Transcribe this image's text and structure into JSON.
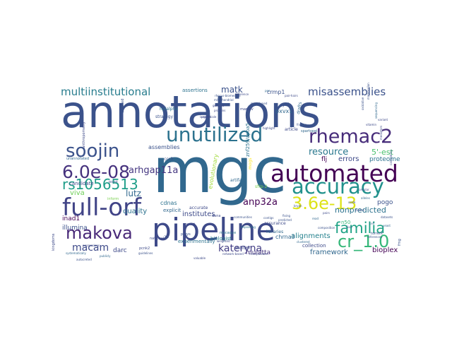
{
  "words": [
    {
      "text": "annotations",
      "color": "#3b528b"
    },
    {
      "text": "mgc",
      "color": "#31688e"
    },
    {
      "text": "pipeline",
      "color": "#3e4a89"
    },
    {
      "text": "automated",
      "color": "#440154"
    },
    {
      "text": "full-orf",
      "color": "#414487"
    },
    {
      "text": "accuracy",
      "color": "#21918c"
    },
    {
      "text": "unutilized",
      "color": "#2c728e"
    },
    {
      "text": "rhemac2",
      "color": "#472c7a"
    },
    {
      "text": "soojin",
      "color": "#3b528b"
    },
    {
      "text": "6.0e-08",
      "color": "#46327e"
    },
    {
      "text": "makova",
      "color": "#482878"
    },
    {
      "text": "3.6e-13",
      "color": "#dde318"
    },
    {
      "text": "cr_1.0",
      "color": "#35b779"
    },
    {
      "text": "familia",
      "color": "#20a386"
    },
    {
      "text": "rs1056513",
      "color": "#1f9e89"
    },
    {
      "text": "multiinstitutional",
      "color": "#287d8e"
    },
    {
      "text": "misassemblies",
      "color": "#3b528b"
    },
    {
      "text": "kateryna",
      "color": "#433e85"
    },
    {
      "text": "macam",
      "color": "#3e4a89"
    },
    {
      "text": "arhgap11a",
      "color": "#453781"
    },
    {
      "text": "anp32a",
      "color": "#440154"
    },
    {
      "text": "lutz",
      "color": "#31688e"
    },
    {
      "text": "matk",
      "color": "#3b528b"
    },
    {
      "text": "resource",
      "color": "#2a788e"
    },
    {
      "text": "5'-est",
      "color": "#4ac16d"
    },
    {
      "text": "nonpredicted",
      "color": "#2c728e"
    },
    {
      "text": "viva",
      "color": "#6ece58"
    },
    {
      "text": "quality",
      "color": "#2c728e"
    },
    {
      "text": "institutes",
      "color": "#3e4a89"
    },
    {
      "text": "pogo",
      "color": "#3b528b"
    },
    {
      "text": "alignments",
      "color": "#26828e"
    },
    {
      "text": "framework",
      "color": "#31688e"
    },
    {
      "text": "bioplex",
      "color": "#440154"
    },
    {
      "text": "errors",
      "color": "#3e4a89"
    },
    {
      "text": "proteome",
      "color": "#2c728e"
    },
    {
      "text": "flj",
      "color": "#440154"
    },
    {
      "text": "illumina",
      "color": "#3b528b"
    },
    {
      "text": "inad1",
      "color": "#440154"
    },
    {
      "text": "darc",
      "color": "#3e4a89"
    },
    {
      "text": "mulatta",
      "color": "#46337e"
    },
    {
      "text": "walter",
      "color": "#3e4a89"
    },
    {
      "text": "chrna3",
      "color": "#31688e"
    },
    {
      "text": "evolutionary",
      "color": "#a0da39"
    },
    {
      "text": "assemblies",
      "color": "#3b528b"
    },
    {
      "text": "cdnas",
      "color": "#2c728e"
    },
    {
      "text": "biologist",
      "color": "#26828e"
    },
    {
      "text": "collection",
      "color": "#3e4a89"
    },
    {
      "text": "crmp1",
      "color": "#3b528b"
    },
    {
      "text": "pxvx1",
      "color": "#31688e"
    },
    {
      "text": "assertions",
      "color": "#2c728e"
    },
    {
      "text": "candidate",
      "color": "#3e4a89"
    },
    {
      "text": "explicit",
      "color": "#31688e"
    },
    {
      "text": "experimentally",
      "color": "#2c728e"
    },
    {
      "text": "yi",
      "color": "#3b528b"
    },
    {
      "text": "n50",
      "color": "#35b779"
    },
    {
      "text": "article",
      "color": "#3e4a89"
    },
    {
      "text": "y2h",
      "color": "#3b528b"
    },
    {
      "text": "hpialpha",
      "color": "#2c728e"
    },
    {
      "text": "assurance",
      "color": "#3e4a89"
    },
    {
      "text": "drafts",
      "color": "#31688e"
    },
    {
      "text": "znf259/apoa5",
      "color": "#2c728e"
    },
    {
      "text": "strategy",
      "color": "#3b528b"
    },
    {
      "text": "accurate",
      "color": "#3e4a89"
    },
    {
      "text": "artifact",
      "color": "#31688e"
    },
    {
      "text": "sfrp-2",
      "color": "#7ad151"
    },
    {
      "text": "mogs",
      "color": "#fde725"
    },
    {
      "text": "kingdoms",
      "color": "#3e4a89"
    },
    {
      "text": "unannotated",
      "color": "#31688e"
    },
    {
      "text": "inform",
      "color": "#7ad151"
    },
    {
      "text": "ccr3",
      "color": "#3b528b"
    },
    {
      "text": "pcnk2",
      "color": "#3e4a89"
    },
    {
      "text": "preys",
      "color": "#3b528b"
    },
    {
      "text": "libraries",
      "color": "#31688e"
    },
    {
      "text": "dana",
      "color": "#3e4a89"
    },
    {
      "text": "torrent",
      "color": "#3b528b"
    },
    {
      "text": "macaque",
      "color": "#2c728e"
    },
    {
      "text": "weighted",
      "color": "#3e4a89"
    },
    {
      "text": "read",
      "color": "#31688e"
    },
    {
      "text": "contigs",
      "color": "#3b528b"
    },
    {
      "text": "depositing",
      "color": "#2c728e"
    },
    {
      "text": "markov",
      "color": "#3e4a89"
    },
    {
      "text": "point",
      "color": "#3b528b"
    },
    {
      "text": "expert",
      "color": "#3e4a89"
    },
    {
      "text": "entailed",
      "color": "#3b528b"
    },
    {
      "text": "national",
      "color": "#3e4a89"
    },
    {
      "text": "spartopel",
      "color": "#31688e"
    },
    {
      "text": "communities",
      "color": "#3b528b"
    },
    {
      "text": "network-based",
      "color": "#3e4a89"
    },
    {
      "text": "clustered",
      "color": "#31688e"
    },
    {
      "text": "reference",
      "color": "#3e4a89"
    },
    {
      "text": "references",
      "color": "#3b528b"
    },
    {
      "text": "lisa",
      "color": "#3e4a89"
    },
    {
      "text": "composition",
      "color": "#3b528b"
    },
    {
      "text": "cell",
      "color": "#31688e"
    },
    {
      "text": "cellular",
      "color": "#3e4a89"
    },
    {
      "text": "frames",
      "color": "#3b528b"
    },
    {
      "text": "project",
      "color": "#3e4a89"
    },
    {
      "text": "guidelines",
      "color": "#3b528b"
    },
    {
      "text": "valuable",
      "color": "#3e4a89"
    },
    {
      "text": "publicly",
      "color": "#31688e"
    },
    {
      "text": "transposable",
      "color": "#3e4a89"
    },
    {
      "text": "fmg",
      "color": "#3b528b"
    },
    {
      "text": "larger-scale",
      "color": "#3e4a89"
    },
    {
      "text": "mitochondrial",
      "color": "#3b528b"
    },
    {
      "text": "vitamin",
      "color": "#3e4a89"
    },
    {
      "text": "alleles",
      "color": "#31688e"
    },
    {
      "text": "scale",
      "color": "#3b528b"
    },
    {
      "text": "pair-hairs",
      "color": "#3e4a89"
    },
    {
      "text": "rhesus-biomedical",
      "color": "#3b528b"
    },
    {
      "text": "anthropometry",
      "color": "#3e4a89"
    },
    {
      "text": "systematically",
      "color": "#31688e"
    },
    {
      "text": "autocreted",
      "color": "#3b528b"
    },
    {
      "text": "possessions",
      "color": "#3e4a89"
    },
    {
      "text": "calculating",
      "color": "#3b528b"
    },
    {
      "text": "variant",
      "color": "#3e4a89"
    },
    {
      "text": "oxidative",
      "color": "#3b528b"
    },
    {
      "text": "mediators",
      "color": "#3e4a89"
    },
    {
      "text": "mammalian",
      "color": "#3b528b"
    },
    {
      "text": "sequencing",
      "color": "#31688e"
    },
    {
      "text": "highlight",
      "color": "#3e4a89"
    },
    {
      "text": "fixing",
      "color": "#3b528b"
    },
    {
      "text": "pairs",
      "color": "#3e4a89"
    },
    {
      "text": "mgc-cloned",
      "color": "#3b528b"
    },
    {
      "text": "genome",
      "color": "#3e4a89"
    },
    {
      "text": "pen",
      "color": "#31688e"
    },
    {
      "text": "bryan",
      "color": "#3b528b"
    },
    {
      "text": "proteins",
      "color": "#3e4a89"
    },
    {
      "text": "predicted",
      "color": "#3b528b"
    },
    {
      "text": "clones",
      "color": "#3e4a89"
    },
    {
      "text": "datasets",
      "color": "#3b528b"
    },
    {
      "text": "yeast",
      "color": "#31688e"
    }
  ]
}
